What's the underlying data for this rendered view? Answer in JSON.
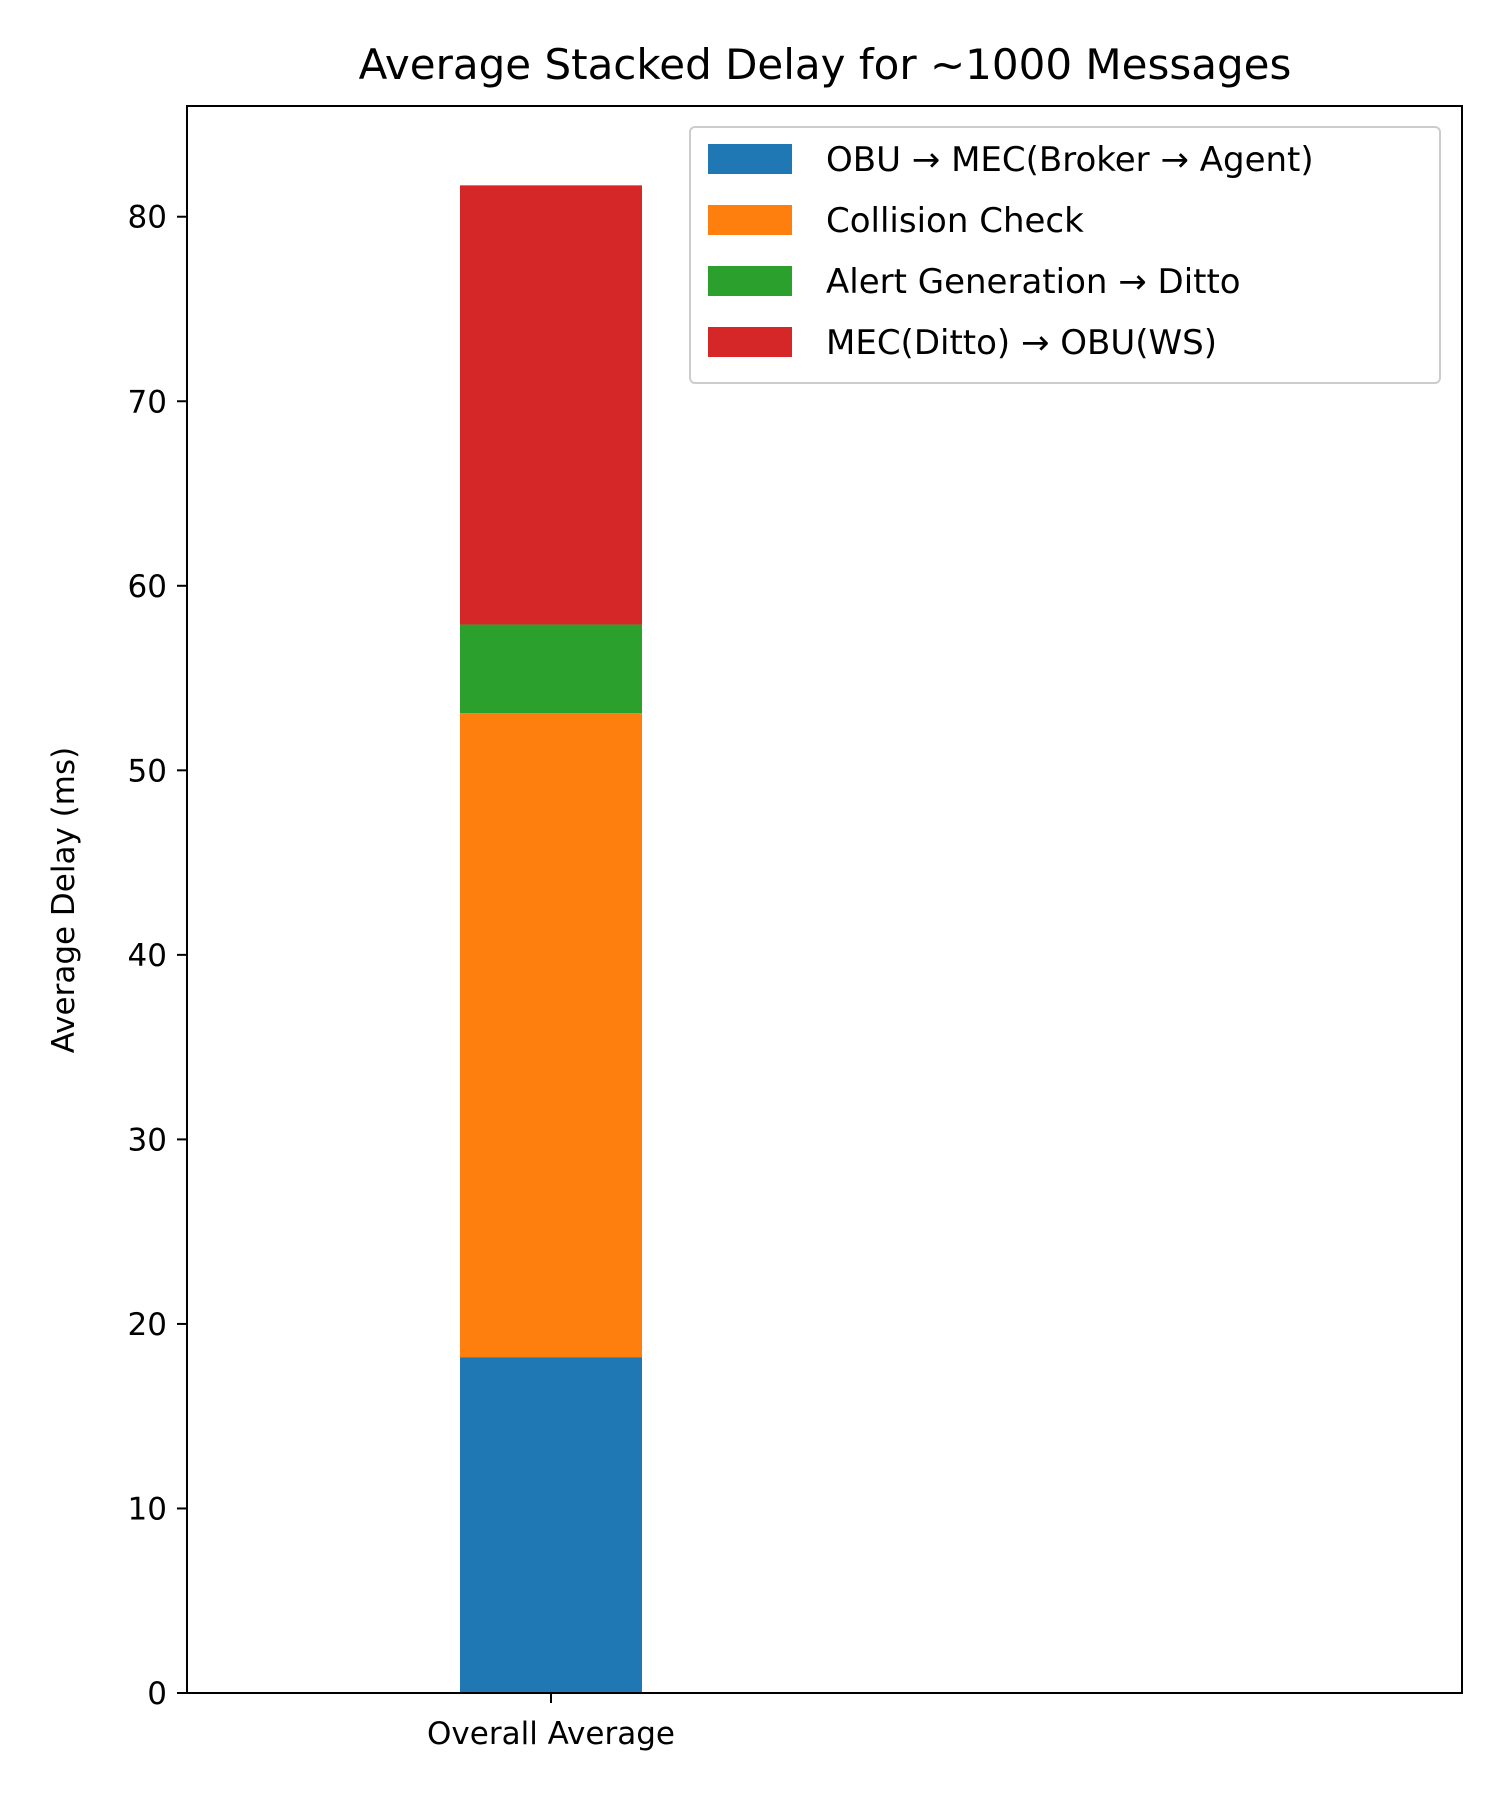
{
  "chart_data": {
    "type": "bar",
    "stacked": true,
    "title": "Average Stacked Delay for ~1000 Messages",
    "xlabel": "",
    "ylabel": "Average Delay (ms)",
    "categories": [
      "Overall Average"
    ],
    "ylim": [
      0,
      86
    ],
    "yticks": [
      0,
      10,
      20,
      30,
      40,
      50,
      60,
      70,
      80
    ],
    "grid": false,
    "legend_position": "top-right",
    "series": [
      {
        "name": "OBU → MEC(Broker → Agent)",
        "values": [
          18.2
        ],
        "color": "#1f77b4"
      },
      {
        "name": "Collision Check",
        "values": [
          34.9
        ],
        "color": "#ff7f0e"
      },
      {
        "name": "Alert Generation → Ditto",
        "values": [
          4.8
        ],
        "color": "#2ca02c"
      },
      {
        "name": "MEC(Ditto) → OBU(WS)",
        "values": [
          23.8
        ],
        "color": "#d62728"
      }
    ]
  }
}
